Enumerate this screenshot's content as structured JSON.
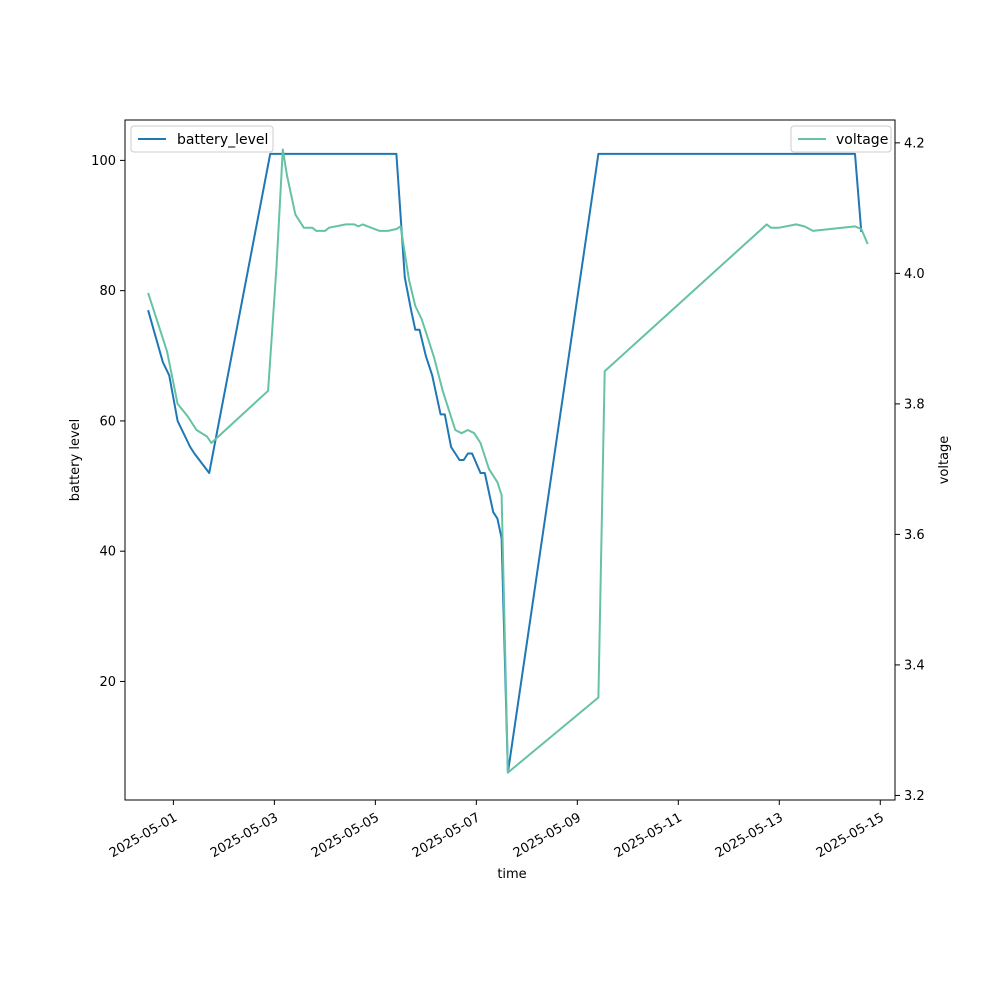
{
  "chart_data": {
    "type": "line",
    "xlabel": "time",
    "ylabel_left": "battery level",
    "ylabel_right": "voltage",
    "x_ticks": [
      "2025-05-01",
      "2025-05-03",
      "2025-05-05",
      "2025-05-07",
      "2025-05-09",
      "2025-05-11",
      "2025-05-13",
      "2025-05-15"
    ],
    "y_left_ticks": [
      20,
      40,
      60,
      80,
      100
    ],
    "y_right_ticks": [
      3.2,
      3.4,
      3.6,
      3.8,
      4.0,
      4.2
    ],
    "xlim": [
      "2025-04-30T01:00",
      "2025-05-15T07:00"
    ],
    "ylim_left": [
      1.8,
      106.2
    ],
    "ylim_right": [
      3.193,
      4.235
    ],
    "legend_left": {
      "position": "upper-left",
      "label": "battery_level"
    },
    "legend_right": {
      "position": "upper-right",
      "label": "voltage"
    },
    "colors": {
      "battery_level": "#1f77b4",
      "voltage": "#66c2a5"
    },
    "series": [
      {
        "name": "battery_level",
        "axis": "left",
        "points": [
          [
            "2025-04-30T12:00",
            77
          ],
          [
            "2025-04-30T19:00",
            69
          ],
          [
            "2025-04-30T22:00",
            67
          ],
          [
            "2025-05-01T02:00",
            60
          ],
          [
            "2025-05-01T08:00",
            56
          ],
          [
            "2025-05-01T10:00",
            55
          ],
          [
            "2025-05-01T17:00",
            52
          ],
          [
            "2025-05-02T22:00",
            101
          ],
          [
            "2025-05-05T10:00",
            101
          ],
          [
            "2025-05-05T14:00",
            82
          ],
          [
            "2025-05-05T17:00",
            77
          ],
          [
            "2025-05-05T19:00",
            74
          ],
          [
            "2025-05-05T21:00",
            74
          ],
          [
            "2025-05-06T00:00",
            70
          ],
          [
            "2025-05-06T03:00",
            67
          ],
          [
            "2025-05-06T05:00",
            64
          ],
          [
            "2025-05-06T07:00",
            61
          ],
          [
            "2025-05-06T09:00",
            61
          ],
          [
            "2025-05-06T12:00",
            56
          ],
          [
            "2025-05-06T16:00",
            54
          ],
          [
            "2025-05-06T18:00",
            54
          ],
          [
            "2025-05-06T20:00",
            55
          ],
          [
            "2025-05-06T22:00",
            55
          ],
          [
            "2025-05-07T02:00",
            52
          ],
          [
            "2025-05-07T04:00",
            52
          ],
          [
            "2025-05-07T08:00",
            46
          ],
          [
            "2025-05-07T10:00",
            45
          ],
          [
            "2025-05-07T12:00",
            42
          ],
          [
            "2025-05-07T15:00",
            6
          ],
          [
            "2025-05-09T10:00",
            101
          ],
          [
            "2025-05-14T12:00",
            101
          ],
          [
            "2025-05-14T15:00",
            89
          ]
        ]
      },
      {
        "name": "voltage",
        "axis": "right",
        "points": [
          [
            "2025-04-30T12:00",
            3.97
          ],
          [
            "2025-04-30T18:00",
            3.91
          ],
          [
            "2025-04-30T21:00",
            3.88
          ],
          [
            "2025-05-01T02:00",
            3.8
          ],
          [
            "2025-05-01T07:00",
            3.78
          ],
          [
            "2025-05-01T11:00",
            3.76
          ],
          [
            "2025-05-01T16:00",
            3.75
          ],
          [
            "2025-05-01T18:00",
            3.74
          ],
          [
            "2025-05-02T21:00",
            3.82
          ],
          [
            "2025-05-03T01:00",
            4.01
          ],
          [
            "2025-05-03T04:00",
            4.19
          ],
          [
            "2025-05-03T06:00",
            4.15
          ],
          [
            "2025-05-03T10:00",
            4.09
          ],
          [
            "2025-05-03T14:00",
            4.07
          ],
          [
            "2025-05-03T18:00",
            4.07
          ],
          [
            "2025-05-03T20:00",
            4.065
          ],
          [
            "2025-05-04T00:00",
            4.065
          ],
          [
            "2025-05-04T02:00",
            4.07
          ],
          [
            "2025-05-04T10:00",
            4.075
          ],
          [
            "2025-05-04T14:00",
            4.075
          ],
          [
            "2025-05-04T16:00",
            4.072
          ],
          [
            "2025-05-04T18:00",
            4.075
          ],
          [
            "2025-05-04T22:00",
            4.07
          ],
          [
            "2025-05-05T02:00",
            4.065
          ],
          [
            "2025-05-05T06:00",
            4.065
          ],
          [
            "2025-05-05T10:00",
            4.068
          ],
          [
            "2025-05-05T12:00",
            4.072
          ],
          [
            "2025-05-05T16:00",
            3.99
          ],
          [
            "2025-05-05T19:00",
            3.95
          ],
          [
            "2025-05-05T22:00",
            3.93
          ],
          [
            "2025-05-06T01:00",
            3.9
          ],
          [
            "2025-05-06T04:00",
            3.87
          ],
          [
            "2025-05-06T08:00",
            3.82
          ],
          [
            "2025-05-06T11:00",
            3.79
          ],
          [
            "2025-05-06T14:00",
            3.76
          ],
          [
            "2025-05-06T17:00",
            3.755
          ],
          [
            "2025-05-06T20:00",
            3.76
          ],
          [
            "2025-05-06T23:00",
            3.755
          ],
          [
            "2025-05-07T02:00",
            3.74
          ],
          [
            "2025-05-07T06:00",
            3.7
          ],
          [
            "2025-05-07T10:00",
            3.68
          ],
          [
            "2025-05-07T12:00",
            3.66
          ],
          [
            "2025-05-07T15:00",
            3.235
          ],
          [
            "2025-05-09T10:00",
            3.35
          ],
          [
            "2025-05-09T13:00",
            3.85
          ],
          [
            "2025-05-12T18:00",
            4.075
          ],
          [
            "2025-05-12T20:00",
            4.07
          ],
          [
            "2025-05-13T00:00",
            4.07
          ],
          [
            "2025-05-13T08:00",
            4.075
          ],
          [
            "2025-05-13T12:00",
            4.072
          ],
          [
            "2025-05-13T16:00",
            4.065
          ],
          [
            "2025-05-14T12:00",
            4.072
          ],
          [
            "2025-05-14T15:00",
            4.068
          ],
          [
            "2025-05-14T18:00",
            4.045
          ]
        ]
      }
    ]
  }
}
